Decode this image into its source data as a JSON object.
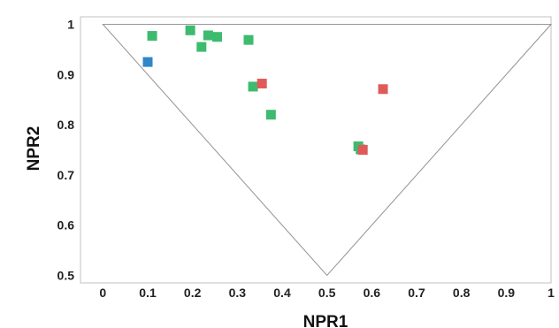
{
  "chart_data": {
    "type": "scatter",
    "title": "",
    "xlabel": "NPR1",
    "ylabel": "NPR2",
    "xlim": [
      -0.05,
      1.0
    ],
    "ylim": [
      0.485,
      1.015
    ],
    "x_ticks": [
      "0",
      "0.1",
      "0.2",
      "0.3",
      "0.4",
      "0.5",
      "0.6",
      "0.7",
      "0.8",
      "0.9",
      "1"
    ],
    "y_ticks": [
      "0.5",
      "0.6",
      "0.7",
      "0.8",
      "0.9",
      "1"
    ],
    "marker": "square",
    "reference_triangle": [
      [
        0,
        1
      ],
      [
        0.5,
        0.5
      ],
      [
        1,
        1
      ]
    ],
    "grid": false,
    "colors": {
      "green": "#3dbb6e",
      "red": "#e05a5a",
      "blue": "#2f86c9",
      "triangle": "#9a9a9a",
      "frame": "#c0c0c0"
    },
    "series": [
      {
        "color": "#3dbb6e",
        "points": [
          [
            0.11,
            0.977
          ],
          [
            0.195,
            0.988
          ],
          [
            0.22,
            0.955
          ],
          [
            0.235,
            0.978
          ],
          [
            0.255,
            0.975
          ],
          [
            0.325,
            0.969
          ],
          [
            0.335,
            0.876
          ],
          [
            0.375,
            0.82
          ],
          [
            0.57,
            0.757
          ],
          [
            0.575,
            0.751
          ]
        ]
      },
      {
        "color": "#e05a5a",
        "points": [
          [
            0.355,
            0.882
          ],
          [
            0.58,
            0.75
          ],
          [
            0.625,
            0.871
          ]
        ]
      },
      {
        "color": "#2f86c9",
        "points": [
          [
            0.1,
            0.925
          ]
        ]
      }
    ]
  }
}
